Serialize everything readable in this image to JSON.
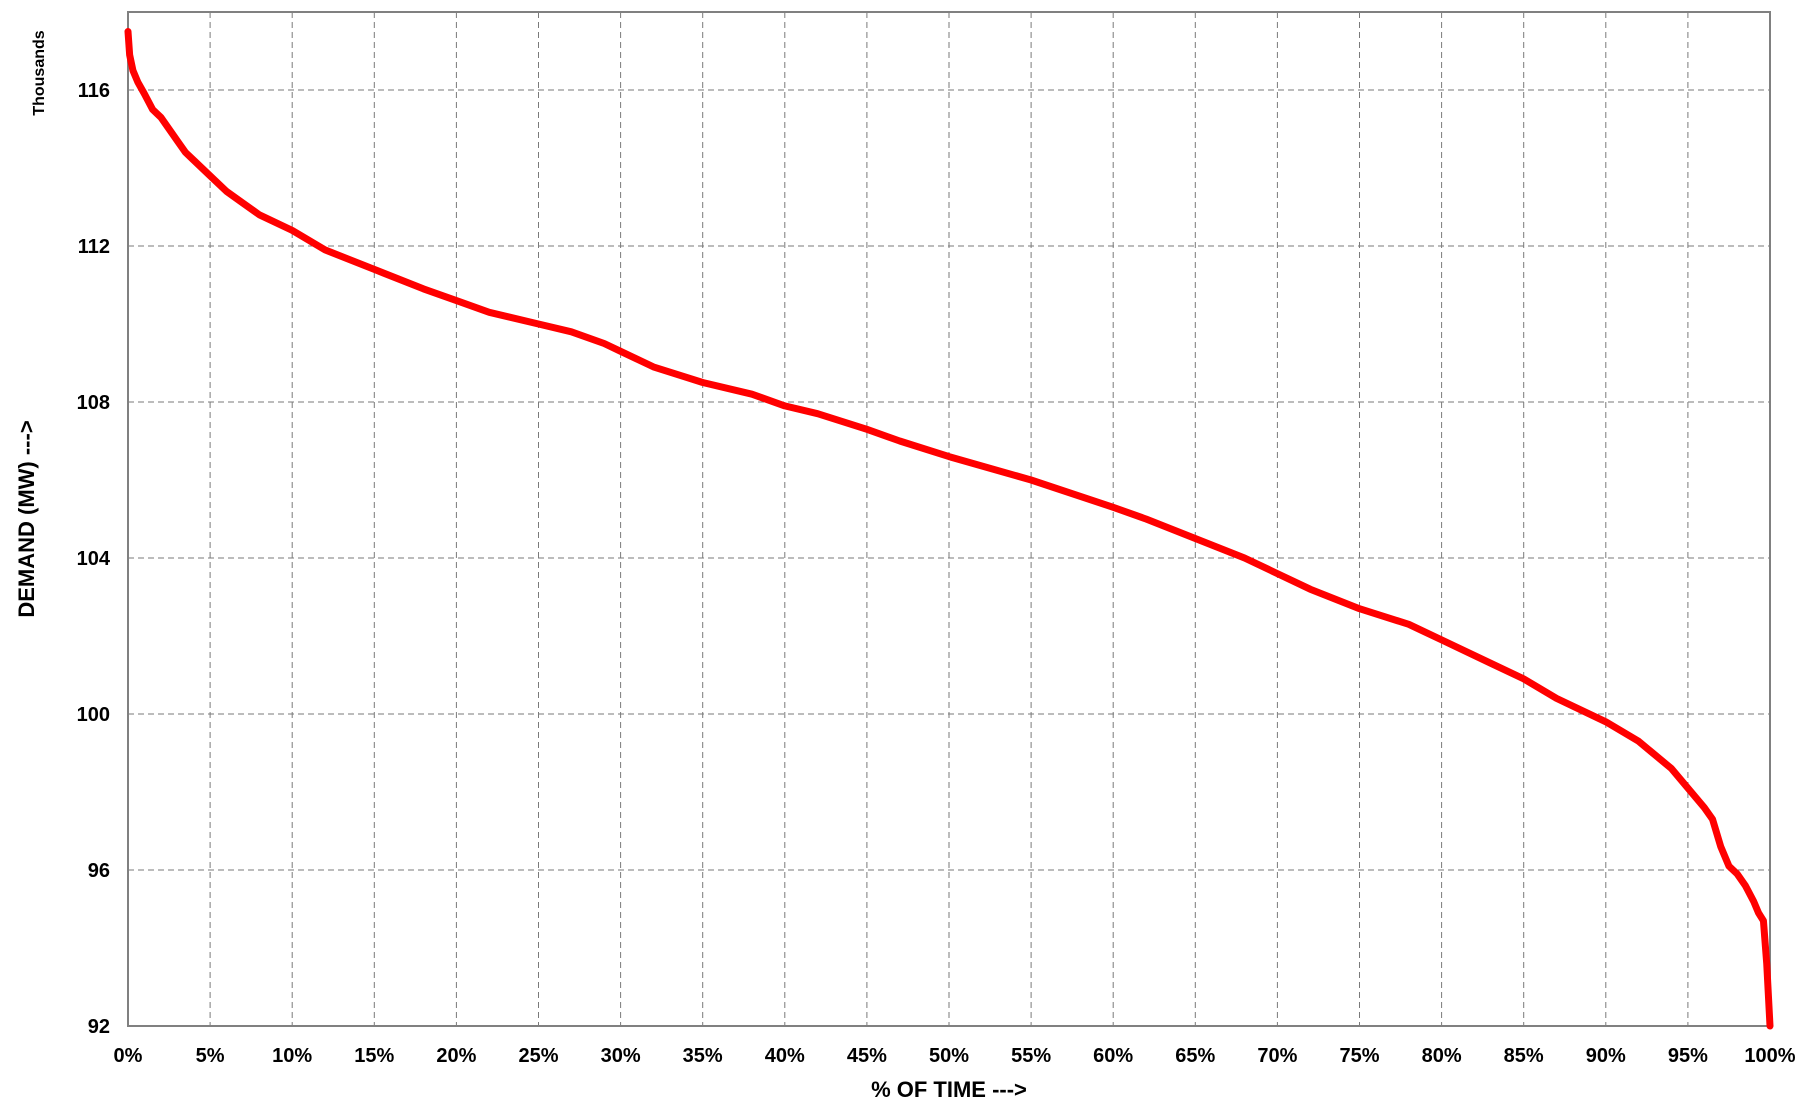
{
  "chart_data": {
    "type": "line",
    "title": "",
    "xlabel": "% OF TIME --->",
    "ylabel": "DEMAND (MW) --->",
    "y_units_label": "Thousands",
    "xlim": [
      0,
      100
    ],
    "ylim": [
      92,
      118
    ],
    "x_ticks": [
      0,
      5,
      10,
      15,
      20,
      25,
      30,
      35,
      40,
      45,
      50,
      55,
      60,
      65,
      70,
      75,
      80,
      85,
      90,
      95,
      100
    ],
    "x_tick_labels": [
      "0%",
      "5%",
      "10%",
      "15%",
      "20%",
      "25%",
      "30%",
      "35%",
      "40%",
      "45%",
      "50%",
      "55%",
      "60%",
      "65%",
      "70%",
      "75%",
      "80%",
      "85%",
      "90%",
      "95%",
      "100%"
    ],
    "y_ticks": [
      92,
      96,
      100,
      104,
      108,
      112,
      116
    ],
    "y_tick_labels": [
      "92",
      "96",
      "100",
      "104",
      "108",
      "112",
      "116"
    ],
    "grid": true,
    "legend": "none",
    "series": [
      {
        "color": "#ff0000",
        "x": [
          0,
          0.1,
          0.3,
          0.6,
          1,
          1.5,
          2,
          2.5,
          3,
          3.5,
          4,
          5,
          6,
          7,
          8,
          10,
          12,
          15,
          18,
          20,
          22,
          25,
          27,
          29,
          30,
          32,
          35,
          38,
          40,
          42,
          45,
          47,
          50,
          55,
          60,
          62,
          65,
          68,
          70,
          72,
          75,
          78,
          80,
          83,
          85,
          87,
          90,
          92,
          94,
          95,
          96,
          96.5,
          97,
          97.5,
          98,
          98.5,
          99,
          99.3,
          99.6,
          99.8,
          100
        ],
        "y": [
          117.5,
          116.9,
          116.5,
          116.2,
          115.9,
          115.5,
          115.3,
          115.0,
          114.7,
          114.4,
          114.2,
          113.8,
          113.4,
          113.1,
          112.8,
          112.4,
          111.9,
          111.4,
          110.9,
          110.6,
          110.3,
          110.0,
          109.8,
          109.5,
          109.3,
          108.9,
          108.5,
          108.2,
          107.9,
          107.7,
          107.3,
          107.0,
          106.6,
          106.0,
          105.3,
          105.0,
          104.5,
          104.0,
          103.6,
          103.2,
          102.7,
          102.3,
          101.9,
          101.3,
          100.9,
          100.4,
          99.8,
          99.3,
          98.6,
          98.1,
          97.6,
          97.3,
          96.6,
          96.1,
          95.9,
          95.6,
          95.2,
          94.9,
          94.7,
          93.6,
          92.0
        ]
      }
    ]
  }
}
